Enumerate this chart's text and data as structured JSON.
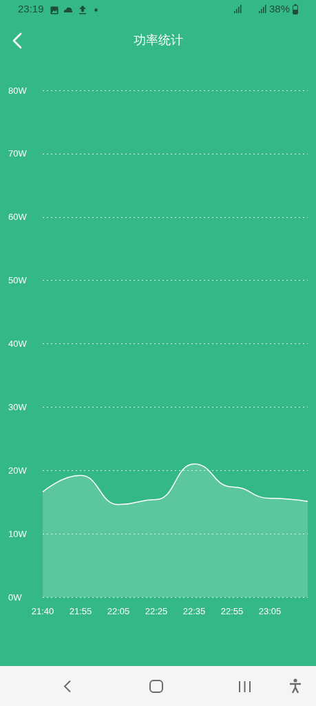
{
  "chart_data": {
    "type": "area",
    "title": "功率统计",
    "annotations": [
      "23:19",
      "38%"
    ],
    "categories": [
      "21:40",
      "21:55",
      "22:05",
      "22:25",
      "22:35",
      "22:55",
      "23:05",
      null
    ],
    "series": [
      {
        "color": "#ffffff",
        "values": [
          16.6,
          19.2,
          14.6,
          15.4,
          21.0,
          17.4,
          15.6,
          15.1
        ]
      }
    ],
    "ylim": [
      0,
      80
    ],
    "yticks": [
      {
        "value": 0,
        "label": "0W"
      },
      {
        "value": 10,
        "label": "10W"
      },
      {
        "value": 20,
        "label": "20W"
      },
      {
        "value": 30,
        "label": "30W"
      },
      {
        "value": 40,
        "label": "40W"
      },
      {
        "value": 50,
        "label": "50W"
      },
      {
        "value": 60,
        "label": "60W"
      },
      {
        "value": 70,
        "label": "70W"
      },
      {
        "value": 80,
        "label": "80W"
      }
    ],
    "grid": "y",
    "marker": "none",
    "line_style": "solid"
  }
}
